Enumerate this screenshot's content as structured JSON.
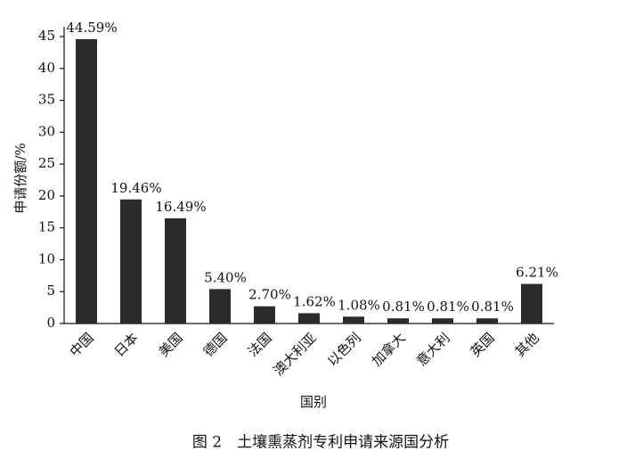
{
  "chart_data": {
    "type": "bar",
    "caption": "图 2　土壤熏蒸剂专利申请来源国分析",
    "x_label": "国别",
    "y_label": "申请份额/%",
    "categories": [
      "中国",
      "日本",
      "美国",
      "德国",
      "法国",
      "澳大利亚",
      "以色列",
      "加拿大",
      "意大利",
      "英国",
      "其他"
    ],
    "values": [
      44.59,
      19.46,
      16.49,
      5.4,
      2.7,
      1.62,
      1.08,
      0.81,
      0.81,
      0.81,
      6.21
    ],
    "value_labels": [
      "44.59%",
      "19.46%",
      "16.49%",
      "5.40%",
      "2.70%",
      "1.62%",
      "1.08%",
      "0.81%",
      "0.81%",
      "0.81%",
      "6.21%"
    ],
    "color": "#2b2b2b",
    "ylim": [
      0,
      45
    ],
    "yticks": [
      0,
      5,
      10,
      15,
      20,
      25,
      30,
      35,
      40,
      45
    ],
    "grid": false
  }
}
